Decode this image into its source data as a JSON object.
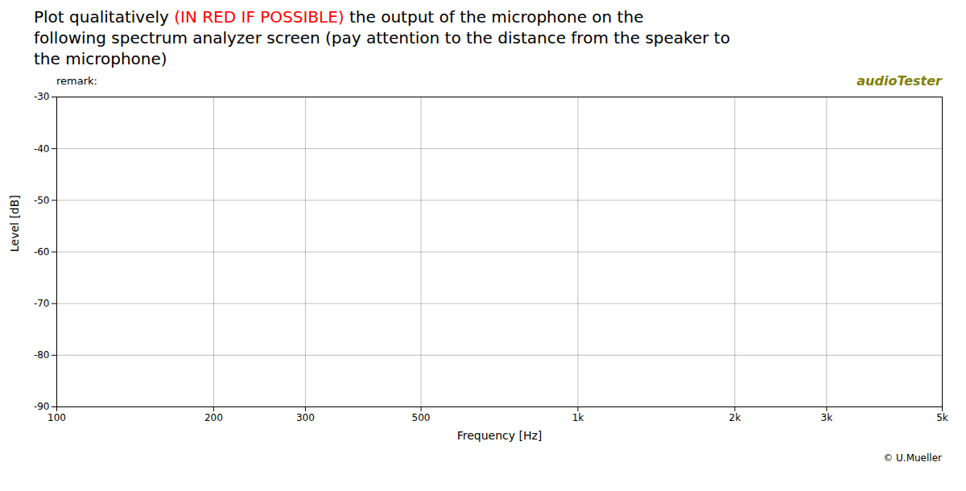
{
  "chart_data": {
    "type": "line",
    "title": {
      "lines": [
        [
          {
            "text": "Plot ",
            "color": "black"
          },
          {
            "text": "qualitatively",
            "color": "black"
          },
          {
            "text": " (IN RED IF POSSIBLE) ",
            "color": "red"
          },
          {
            "text": "the output of the microphone on the",
            "color": "black"
          }
        ],
        [
          {
            "text": "following spectrum analyzer screen (pay attention to the distance from the speaker to",
            "color": "black"
          }
        ],
        [
          {
            "text": "the microphone)",
            "color": "black"
          }
        ]
      ]
    },
    "annotations": [
      {
        "text": "remark:",
        "color": "black"
      },
      {
        "text": "audioTester",
        "color": "#808000"
      },
      {
        "text": "© U.Mueller",
        "color": "black"
      }
    ],
    "xlabel": "Frequency [Hz]",
    "ylabel": "Level [dB]",
    "log": "x",
    "xlim": [
      100,
      5000
    ],
    "xticks": [
      100,
      200,
      300,
      500,
      {
        "value": 1000,
        "label": "1k"
      },
      {
        "value": 2000,
        "label": "2k"
      },
      {
        "value": 3000,
        "label": "3k"
      },
      {
        "value": 5000,
        "label": "5k"
      }
    ],
    "ylim": [
      -90,
      -30
    ],
    "yticks": [
      -90,
      -80,
      -70,
      -60,
      -50,
      -40,
      -30
    ],
    "grid": true
  }
}
